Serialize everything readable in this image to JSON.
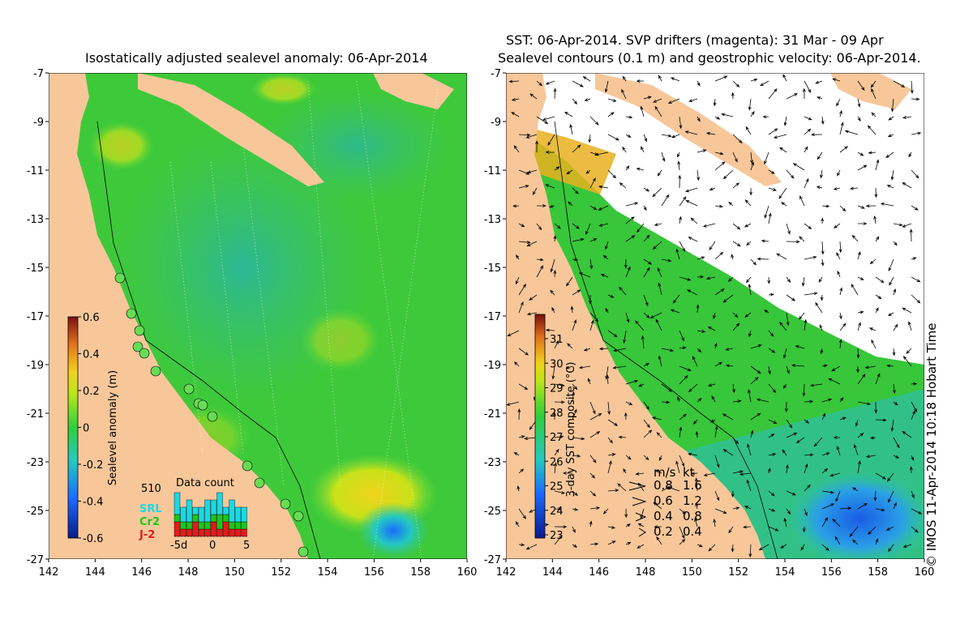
{
  "left_panel": {
    "title": "Isostatically adjusted sealevel anomaly: 06-Apr-2014",
    "colorbar_label": "Sealevel anomaly (m)",
    "colorbar_ticks": [
      "0.6",
      "0.4",
      "0.2",
      "0",
      "-0.2",
      "-0.4",
      "-0.6"
    ],
    "data_count": {
      "title": "Data count",
      "count": "510",
      "legend": [
        {
          "label": "SRL",
          "color": "#19d9e6"
        },
        {
          "label": "Cr2",
          "color": "#19c819"
        },
        {
          "label": "J-2",
          "color": "#e61919"
        }
      ],
      "x_ticks": [
        "-5d",
        "0",
        "5"
      ],
      "bars": [
        {
          "srl": 3,
          "cr2": 1,
          "j2": 2
        },
        {
          "srl": 2,
          "cr2": 1,
          "j2": 1
        },
        {
          "srl": 3,
          "cr2": 1,
          "j2": 1
        },
        {
          "srl": 1,
          "cr2": 1,
          "j2": 2
        },
        {
          "srl": 2,
          "cr2": 1,
          "j2": 1
        },
        {
          "srl": 3,
          "cr2": 1,
          "j2": 1
        },
        {
          "srl": 2,
          "cr2": 1,
          "j2": 2
        },
        {
          "srl": 3,
          "cr2": 2,
          "j2": 1
        },
        {
          "srl": 1,
          "cr2": 1,
          "j2": 2
        },
        {
          "srl": 3,
          "cr2": 1,
          "j2": 1
        },
        {
          "srl": 2,
          "cr2": 1,
          "j2": 1
        },
        {
          "srl": 2,
          "cr2": 1,
          "j2": 1
        }
      ]
    },
    "tide_gauge_count": 15
  },
  "right_panel": {
    "title_line1": "SST: 06-Apr-2014. SVP drifters (magenta): 31 Mar - 09 Apr",
    "title_line2": "Sealevel contours (0.1 m) and geostrophic velocity: 06-Apr-2014.",
    "colorbar_label": "3-day SST composite (°C)",
    "colorbar_ticks": [
      "31",
      "30",
      "29",
      "28",
      "27",
      "26",
      "25",
      "24",
      "23"
    ],
    "velocity_legend": {
      "header_ms": "m/s",
      "header_kt": "kt",
      "rows": [
        {
          "ms": "0.8",
          "kt": "1.6"
        },
        {
          "ms": "0.6",
          "kt": "1.2"
        },
        {
          "ms": "0.4",
          "kt": "0.8"
        },
        {
          "ms": "0.2",
          "kt": "0.4"
        }
      ]
    }
  },
  "axes": {
    "lat_ticks": [
      "-7",
      "-9",
      "-11",
      "-13",
      "-15",
      "-17",
      "-19",
      "-21",
      "-23",
      "-25",
      "-27"
    ],
    "lon_ticks": [
      "142",
      "144",
      "146",
      "148",
      "150",
      "152",
      "154",
      "156",
      "158",
      "160"
    ]
  },
  "credit": "© IMOS 11-Apr-2014 10:18 Hobart Time",
  "colors": {
    "land": "#f7c79a",
    "ocean_green": "#4ed43c",
    "ocean_teal": "#35c58a",
    "cloud": "#ffffff"
  }
}
